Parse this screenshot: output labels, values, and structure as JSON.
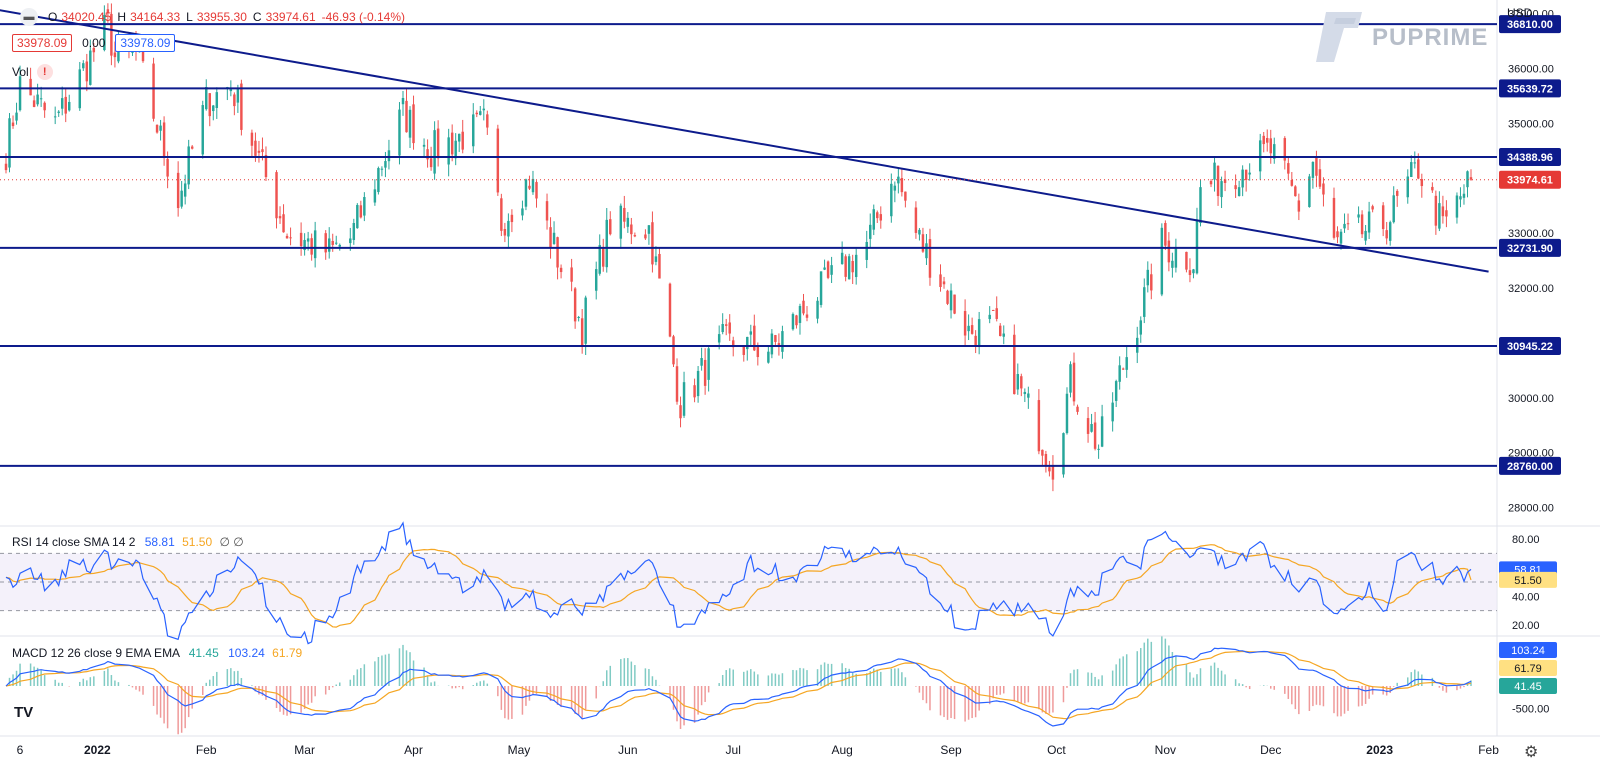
{
  "header": {
    "ohlc": [
      {
        "k": "O",
        "v": "34020.45"
      },
      {
        "k": "H",
        "v": "34164.33"
      },
      {
        "k": "L",
        "v": "33955.30"
      },
      {
        "k": "C",
        "v": "33974.61"
      }
    ],
    "change": "-46.93 (-0.14%)",
    "flag_left": "33978.09",
    "flag_mid": "0.00",
    "flag_right": "33978.09",
    "vol_label": "Vol",
    "warn_icon": "!",
    "menu_icon": "collapse-icon",
    "currency": "USD",
    "brand": "PUPRIME"
  },
  "rsi_label": {
    "text": "RSI 14 close SMA 14 2",
    "v1": "58.81",
    "v2": "51.50",
    "v3": "∅ ∅"
  },
  "macd_label": {
    "text": "MACD 12 26 close 9 EMA EMA",
    "v1": "41.45",
    "v2": "103.24",
    "v3": "61.79"
  },
  "colors": {
    "up": "#26a69a",
    "down": "#ef5350",
    "level": "#0d1b8c",
    "rsi": "#2962ff",
    "sma": "#f5a623",
    "price_tag": "#e53935"
  },
  "chart_data": [
    {
      "type": "candlestick",
      "title": "",
      "ylim": [
        27700,
        37250
      ],
      "y_ticks": [
        37000,
        36000,
        35000,
        34000,
        33000,
        32000,
        31000,
        30000,
        29000,
        28000
      ],
      "y_tick_labels": [
        "37000.00",
        "36000.00",
        "35000.00",
        "34000.00",
        "33000.00",
        "32000.00",
        "31000.00",
        "30000.00",
        "29000.00",
        "28000.00"
      ],
      "x_tick_labels": [
        "6",
        "2022",
        "Feb",
        "Mar",
        "Apr",
        "May",
        "Jun",
        "Jul",
        "Aug",
        "Sep",
        "Oct",
        "Nov",
        "Dec",
        "2023",
        "Feb"
      ],
      "close_anchors": [
        [
          "2021-12-06",
          34500
        ],
        [
          "2021-12-10",
          35700
        ],
        [
          "2021-12-20",
          35000
        ],
        [
          "2022-01-04",
          36800
        ],
        [
          "2022-01-06",
          36200
        ],
        [
          "2022-01-12",
          36300
        ],
        [
          "2022-01-24",
          33600
        ],
        [
          "2022-02-01",
          35400
        ],
        [
          "2022-02-08",
          35700
        ],
        [
          "2022-02-24",
          33000
        ],
        [
          "2022-03-08",
          32650
        ],
        [
          "2022-03-14",
          32900
        ],
        [
          "2022-03-29",
          35200
        ],
        [
          "2022-04-06",
          34500
        ],
        [
          "2022-04-19",
          34900
        ],
        [
          "2022-04-21",
          35000
        ],
        [
          "2022-04-26",
          33200
        ],
        [
          "2022-05-04",
          34000
        ],
        [
          "2022-05-19",
          31300
        ],
        [
          "2022-05-27",
          33200
        ],
        [
          "2022-06-07",
          33100
        ],
        [
          "2022-06-16",
          29900
        ],
        [
          "2022-06-28",
          31000
        ],
        [
          "2022-07-12",
          30900
        ],
        [
          "2022-07-25",
          31900
        ],
        [
          "2022-08-08",
          32800
        ],
        [
          "2022-08-16",
          34100
        ],
        [
          "2022-08-22",
          33000
        ],
        [
          "2022-09-06",
          31200
        ],
        [
          "2022-09-13",
          31300
        ],
        [
          "2022-09-27",
          29200
        ],
        [
          "2022-09-30",
          28800
        ],
        [
          "2022-10-05",
          30300
        ],
        [
          "2022-10-13",
          29100
        ],
        [
          "2022-10-19",
          30400
        ],
        [
          "2022-10-31",
          32800
        ],
        [
          "2022-11-09",
          32500
        ],
        [
          "2022-11-11",
          33800
        ],
        [
          "2022-12-01",
          34500
        ],
        [
          "2022-12-09",
          33500
        ],
        [
          "2022-12-13",
          34300
        ],
        [
          "2022-12-19",
          32800
        ],
        [
          "2022-12-22",
          32900
        ],
        [
          "2023-01-03",
          33200
        ],
        [
          "2023-01-12",
          34200
        ],
        [
          "2023-01-19",
          33100
        ],
        [
          "2023-01-27",
          33978
        ]
      ],
      "last": {
        "open": 34020.45,
        "high": 34164.33,
        "low": 33955.3,
        "close": 33974.61
      },
      "horizontal_levels": [
        36810.0,
        35639.72,
        34388.96,
        32731.9,
        30945.22,
        28760.0
      ],
      "horizontal_level_labels": [
        "36810.00",
        "35639.72",
        "34388.96",
        "32731.90",
        "30945.22",
        "28760.00"
      ],
      "last_price_label": "33974.61",
      "trendline": [
        [
          "2021-12-01",
          37100
        ],
        [
          "2023-02-01",
          32300
        ]
      ]
    },
    {
      "type": "line",
      "title": "RSI 14 close SMA 14 2",
      "ylim": [
        15,
        85
      ],
      "y_tick_labels": [
        "80.00",
        "40.00",
        "20.00"
      ],
      "band": [
        30,
        70
      ],
      "last_values": {
        "rsi": 58.81,
        "sma": 51.5
      },
      "series": [
        {
          "values": []
        },
        {
          "values": []
        }
      ]
    },
    {
      "type": "line",
      "title": "MACD 12 26 close 9 EMA EMA",
      "y_tick_labels": [
        "-500.00"
      ],
      "last_values": {
        "histogram": 41.45,
        "macd": 103.24,
        "signal": 61.79
      },
      "series": [
        {
          "values": []
        },
        {
          "values": []
        },
        {
          "values": []
        }
      ]
    }
  ]
}
